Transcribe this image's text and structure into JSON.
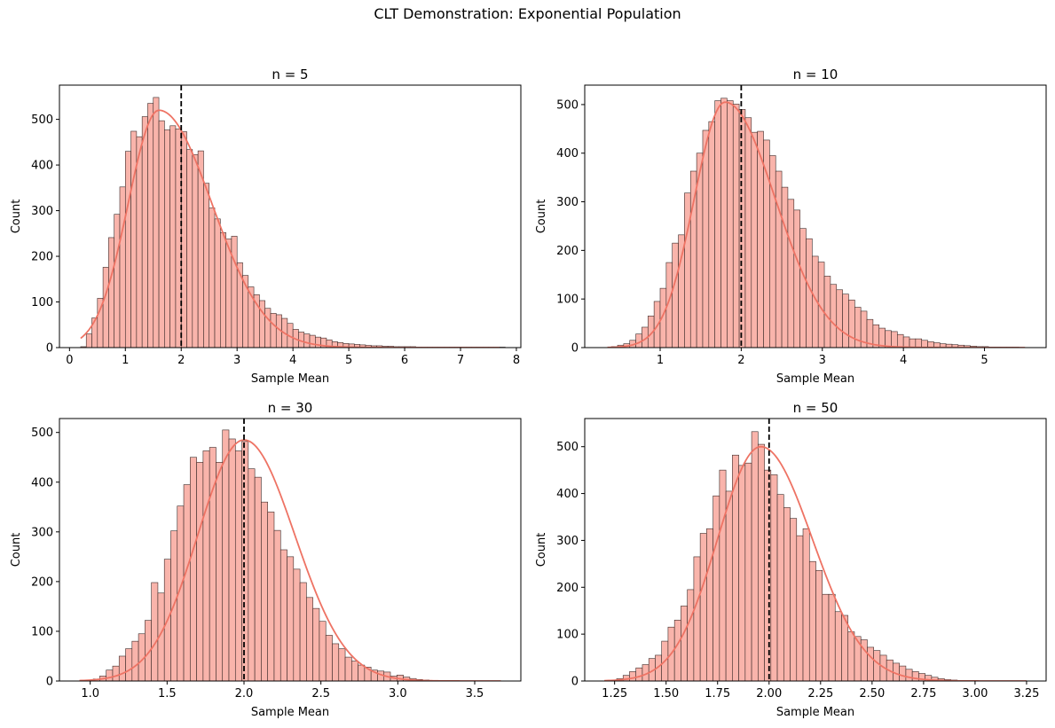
{
  "figure": {
    "suptitle": "CLT Demonstration: Exponential Population"
  },
  "colors": {
    "bar_fill": "#f9b4ab",
    "bar_edge": "#3b2a28",
    "kde": "#ee7364",
    "mean_line": "#000000"
  },
  "chart_data": [
    {
      "type": "histogram",
      "title": "n = 5",
      "xlabel": "Sample Mean",
      "ylabel": "Count",
      "xlim": [
        -0.18,
        8.08
      ],
      "ylim": [
        0,
        575
      ],
      "xticks": [
        0,
        1,
        2,
        3,
        4,
        5,
        6,
        7,
        8
      ],
      "xtick_labels": [
        "0",
        "1",
        "2",
        "3",
        "4",
        "5",
        "6",
        "7",
        "8"
      ],
      "yticks": [
        0,
        100,
        200,
        300,
        400,
        500
      ],
      "ytick_labels": [
        "0",
        "100",
        "200",
        "300",
        "400",
        "500"
      ],
      "bin_start": 0.2,
      "bin_width": 0.1,
      "counts": [
        2,
        30,
        65,
        108,
        176,
        241,
        292,
        352,
        430,
        474,
        462,
        506,
        535,
        548,
        497,
        477,
        486,
        479,
        473,
        434,
        423,
        431,
        360,
        306,
        282,
        252,
        238,
        244,
        186,
        158,
        133,
        116,
        103,
        86,
        75,
        72,
        64,
        53,
        40,
        34,
        30,
        27,
        23,
        21,
        17,
        13,
        11,
        9,
        8,
        7,
        6,
        5,
        4,
        4,
        3,
        3,
        2,
        2,
        2,
        2,
        1,
        1,
        1,
        1,
        1,
        1,
        1,
        1,
        1,
        1,
        1,
        1,
        1,
        1,
        1,
        1
      ],
      "mean_line_x": 2.0,
      "kde": {
        "mode": 1.6,
        "left_sigma": 0.55,
        "right_sigma": 0.95,
        "peak": 520,
        "x_range": [
          0.2,
          7.7
        ]
      },
      "grid": false,
      "legend": "none"
    },
    {
      "type": "histogram",
      "title": "n = 10",
      "xlabel": "Sample Mean",
      "ylabel": "Count",
      "xlim": [
        0.07,
        5.76
      ],
      "ylim": [
        0,
        540
      ],
      "xticks": [
        1,
        2,
        3,
        4,
        5
      ],
      "xtick_labels": [
        "1",
        "2",
        "3",
        "4",
        "5"
      ],
      "yticks": [
        0,
        100,
        200,
        300,
        400,
        500
      ],
      "ytick_labels": [
        "0",
        "100",
        "200",
        "300",
        "400",
        "500"
      ],
      "bin_start": 0.4,
      "bin_width": 0.075,
      "counts": [
        2,
        5,
        8,
        15,
        28,
        42,
        65,
        95,
        122,
        175,
        215,
        232,
        318,
        363,
        400,
        447,
        465,
        508,
        513,
        508,
        501,
        490,
        473,
        443,
        445,
        427,
        395,
        363,
        330,
        305,
        283,
        245,
        224,
        188,
        176,
        147,
        130,
        119,
        110,
        98,
        83,
        75,
        58,
        47,
        40,
        35,
        33,
        27,
        22,
        18,
        18,
        15,
        12,
        10,
        8,
        7,
        6,
        5,
        4,
        3,
        2,
        2,
        1,
        1,
        1,
        1,
        1
      ],
      "mean_line_x": 2.0,
      "kde": {
        "mode": 1.8,
        "left_sigma": 0.38,
        "right_sigma": 0.62,
        "peak": 505,
        "x_range": [
          0.35,
          5.5
        ]
      },
      "grid": false,
      "legend": "none"
    },
    {
      "type": "histogram",
      "title": "n = 30",
      "xlabel": "Sample Mean",
      "ylabel": "Count",
      "xlim": [
        0.8,
        3.8
      ],
      "ylim": [
        0,
        528
      ],
      "xticks": [
        1.0,
        1.5,
        2.0,
        2.5,
        3.0,
        3.5
      ],
      "xtick_labels": [
        "1.0",
        "1.5",
        "2.0",
        "2.5",
        "3.0",
        "3.5"
      ],
      "yticks": [
        0,
        100,
        200,
        300,
        400,
        500
      ],
      "ytick_labels": [
        "0",
        "100",
        "200",
        "300",
        "400",
        "500"
      ],
      "bin_start": 1.02,
      "bin_width": 0.042,
      "counts": [
        4,
        10,
        22,
        30,
        50,
        65,
        80,
        95,
        122,
        198,
        177,
        245,
        302,
        352,
        395,
        450,
        440,
        463,
        470,
        440,
        505,
        487,
        463,
        482,
        427,
        410,
        360,
        340,
        303,
        264,
        250,
        225,
        198,
        168,
        146,
        120,
        92,
        75,
        65,
        48,
        40,
        32,
        28,
        22,
        20,
        18,
        10,
        12,
        8,
        5,
        3,
        2
      ],
      "mean_line_x": 2.0,
      "kde": {
        "mode": 2.0,
        "left_sigma": 0.3,
        "right_sigma": 0.33,
        "peak": 485,
        "x_range": [
          0.93,
          3.67
        ]
      },
      "grid": false,
      "legend": "none"
    },
    {
      "type": "histogram",
      "title": "n = 50",
      "xlabel": "Sample Mean",
      "ylabel": "Count",
      "xlim": [
        1.105,
        3.345
      ],
      "ylim": [
        0,
        560
      ],
      "xticks": [
        1.25,
        1.5,
        1.75,
        2.0,
        2.25,
        2.5,
        2.75,
        3.0,
        3.25
      ],
      "xtick_labels": [
        "1.25",
        "1.50",
        "1.75",
        "2.00",
        "2.25",
        "2.50",
        "2.75",
        "3.00",
        "3.25"
      ],
      "yticks": [
        0,
        100,
        200,
        300,
        400,
        500
      ],
      "ytick_labels": [
        "0",
        "100",
        "200",
        "300",
        "400",
        "500"
      ],
      "bin_start": 1.26,
      "bin_width": 0.0312,
      "counts": [
        5,
        12,
        20,
        28,
        35,
        48,
        55,
        85,
        115,
        130,
        160,
        195,
        265,
        315,
        325,
        395,
        450,
        405,
        482,
        460,
        465,
        532,
        505,
        450,
        440,
        398,
        370,
        347,
        310,
        325,
        255,
        236,
        185,
        185,
        148,
        140,
        105,
        95,
        88,
        72,
        65,
        55,
        45,
        38,
        32,
        25,
        20,
        16,
        12,
        8,
        5,
        3,
        2,
        1
      ],
      "mean_line_x": 2.0,
      "kde": {
        "mode": 1.96,
        "left_sigma": 0.21,
        "right_sigma": 0.25,
        "peak": 500,
        "x_range": [
          1.2,
          3.25
        ]
      },
      "grid": false,
      "legend": "none"
    }
  ]
}
